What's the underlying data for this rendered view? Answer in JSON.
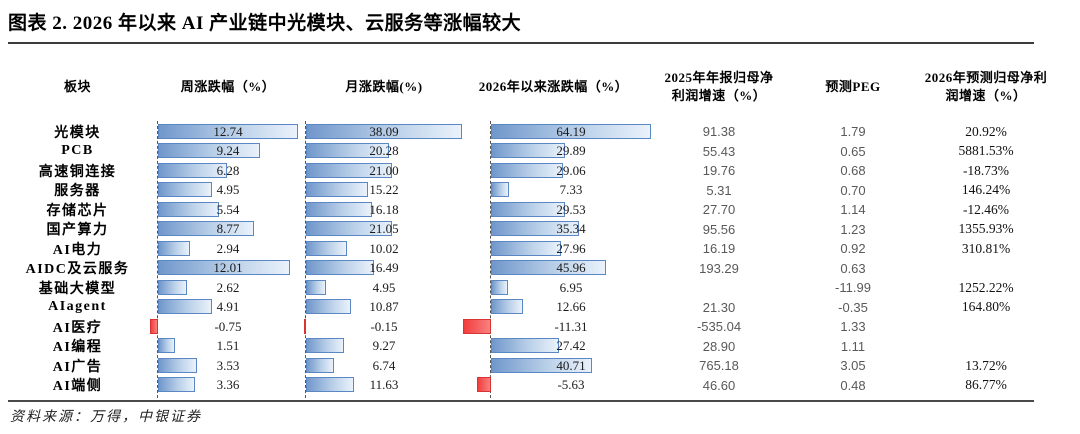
{
  "title": "图表 2. 2026 年以来 AI 产业链中光模块、云服务等涨幅较大",
  "source": "资料来源：万得，中银证券",
  "colors": {
    "bar_blue_border": "#5b87c5",
    "bar_blue_gradient_start": "#7097cb",
    "bar_blue_gradient_end": "#eaf2fb",
    "bar_red": "#f23d3d",
    "bar_red_border": "#d93434",
    "gray_value_text": "#595959",
    "rule_line": "#3c3c3c"
  },
  "chart_data": {
    "type": "table",
    "title": "图表 2. 2026 年以来 AI 产业链中光模块、云服务等涨幅较大",
    "headers": [
      "板块",
      "周涨跌幅（%）",
      "月涨跌幅(%)",
      "2026年以来涨跌幅（%）",
      "2025年年报归母净\n利润增速（%）",
      "预测PEG",
      "2026年预测归母净利\n润增速（%）"
    ],
    "bar_style": "data-bars, positive blue gradient / negative red, dashed zero axis at left of each bar column",
    "bar_maxima": {
      "week": 12.74,
      "month": 38.09,
      "ytd": 64.19
    },
    "rows": [
      {
        "sector": "光模块",
        "week": 12.74,
        "month": 38.09,
        "ytd": 64.19,
        "profit2025": "91.38",
        "peg": "1.79",
        "forecast2026": "20.92%"
      },
      {
        "sector": "PCB",
        "week": 9.24,
        "month": 20.28,
        "ytd": 29.89,
        "profit2025": "55.43",
        "peg": "0.65",
        "forecast2026": "5881.53%"
      },
      {
        "sector": "高速铜连接",
        "week": 6.28,
        "month": 21.0,
        "ytd": 29.06,
        "profit2025": "19.76",
        "peg": "0.68",
        "forecast2026": "-18.73%"
      },
      {
        "sector": "服务器",
        "week": 4.95,
        "month": 15.22,
        "ytd": 7.33,
        "profit2025": "5.31",
        "peg": "0.70",
        "forecast2026": "146.24%"
      },
      {
        "sector": "存储芯片",
        "week": 5.54,
        "month": 16.18,
        "ytd": 29.53,
        "profit2025": "27.70",
        "peg": "1.14",
        "forecast2026": "-12.46%"
      },
      {
        "sector": "国产算力",
        "week": 8.77,
        "month": 21.05,
        "ytd": 35.34,
        "profit2025": "95.56",
        "peg": "1.23",
        "forecast2026": "1355.93%"
      },
      {
        "sector": "AI电力",
        "week": 2.94,
        "month": 10.02,
        "ytd": 27.96,
        "profit2025": "16.19",
        "peg": "0.92",
        "forecast2026": "310.81%"
      },
      {
        "sector": "AIDC及云服务",
        "week": 12.01,
        "month": 16.49,
        "ytd": 45.96,
        "profit2025": "193.29",
        "peg": "0.63",
        "forecast2026": ""
      },
      {
        "sector": "基础大模型",
        "week": 2.62,
        "month": 4.95,
        "ytd": 6.95,
        "profit2025": "",
        "peg": "-11.99",
        "forecast2026": "1252.22%"
      },
      {
        "sector": "AIagent",
        "week": 4.91,
        "month": 10.87,
        "ytd": 12.66,
        "profit2025": "21.30",
        "peg": "-0.35",
        "forecast2026": "164.80%"
      },
      {
        "sector": "AI医疗",
        "week": -0.75,
        "month": -0.15,
        "ytd": -11.31,
        "profit2025": "-535.04",
        "peg": "1.33",
        "forecast2026": ""
      },
      {
        "sector": "AI编程",
        "week": 1.51,
        "month": 9.27,
        "ytd": 27.42,
        "profit2025": "28.90",
        "peg": "1.11",
        "forecast2026": ""
      },
      {
        "sector": "AI广告",
        "week": 3.53,
        "month": 6.74,
        "ytd": 40.71,
        "profit2025": "765.18",
        "peg": "3.05",
        "forecast2026": "13.72%"
      },
      {
        "sector": "AI端侧",
        "week": 3.36,
        "month": 11.63,
        "ytd": -5.63,
        "profit2025": "46.60",
        "peg": "0.48",
        "forecast2026": "86.77%"
      }
    ]
  }
}
